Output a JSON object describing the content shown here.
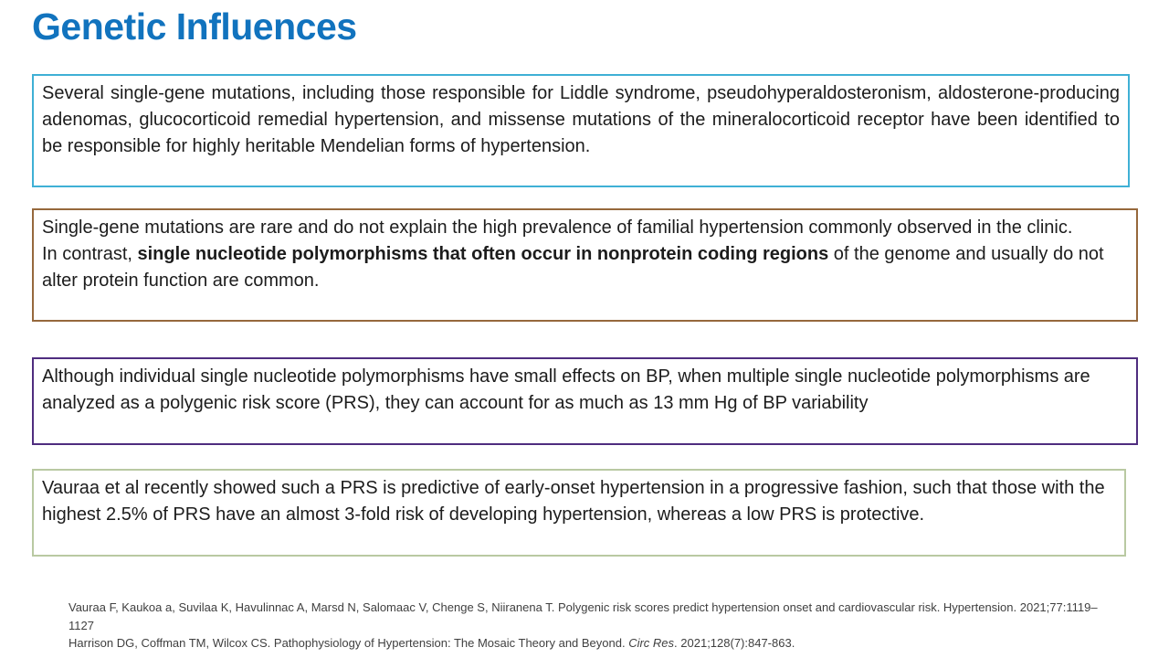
{
  "title": {
    "text": "Genetic Influences",
    "color": "#1173BE"
  },
  "boxes": [
    {
      "name": "mendelian-mutations-box",
      "border_color": "#3FB0D5",
      "segments": [
        {
          "text": "Several single-gene mutations, including those responsible for Liddle syndrome, pseudohyperaldosteronism, aldosterone-producing adenomas, glucocorticoid remedial hypertension, and missense mutations of the mineralocorticoid receptor have been identified to be responsible for highly heritable Mendelian forms of hypertension.",
          "bold": false
        }
      ]
    },
    {
      "name": "single-nucleotide-polymorphisms-box",
      "border_color": "#96683C",
      "segments": [
        {
          "text": "Single-gene mutations are rare and do not explain the high prevalence of familial hypertension commonly observed in the clinic.\nIn contrast, ",
          "bold": false
        },
        {
          "text": "single nucleotide polymorphisms that often occur in nonprotein coding regions",
          "bold": true
        },
        {
          "text": " of the genome and usually do not alter protein function are common.",
          "bold": false
        }
      ]
    },
    {
      "name": "polygenic-risk-score-box",
      "border_color": "#4F2D7F",
      "segments": [
        {
          "text": "Although individual single nucleotide polymorphisms have small effects on BP, when multiple single nucleotide polymorphisms are analyzed as a polygenic risk score (PRS), they can account for as much as 13 mm Hg of BP variability",
          "bold": false
        }
      ]
    },
    {
      "name": "prs-predictive-box",
      "border_color": "#B9C9A2",
      "segments": [
        {
          "text": "Vauraa et al recently showed such a PRS is predictive of early-onset hypertension in a progressive fashion, such that those with the highest 2.5% of PRS have an almost 3-fold risk of developing hypertension, whereas a low PRS is protective.",
          "bold": false
        }
      ]
    }
  ],
  "references": [
    {
      "segments": [
        {
          "text": "Vauraa F, Kaukoa a, Suvilaa K, Havulinnac A, Marsd N, Salomaac V, Chenge S, Niiranena T. Polygenic risk scores predict hypertension onset and cardiovascular risk. Hypertension. 2021;77:1119–1127",
          "italic": false
        }
      ]
    },
    {
      "segments": [
        {
          "text": "Harrison DG, Coffman TM, Wilcox CS. Pathophysiology of Hypertension: The Mosaic Theory and Beyond. ",
          "italic": false
        },
        {
          "text": "Circ Res",
          "italic": true
        },
        {
          "text": ". 2021;128(7):847-863.",
          "italic": false
        }
      ]
    }
  ]
}
